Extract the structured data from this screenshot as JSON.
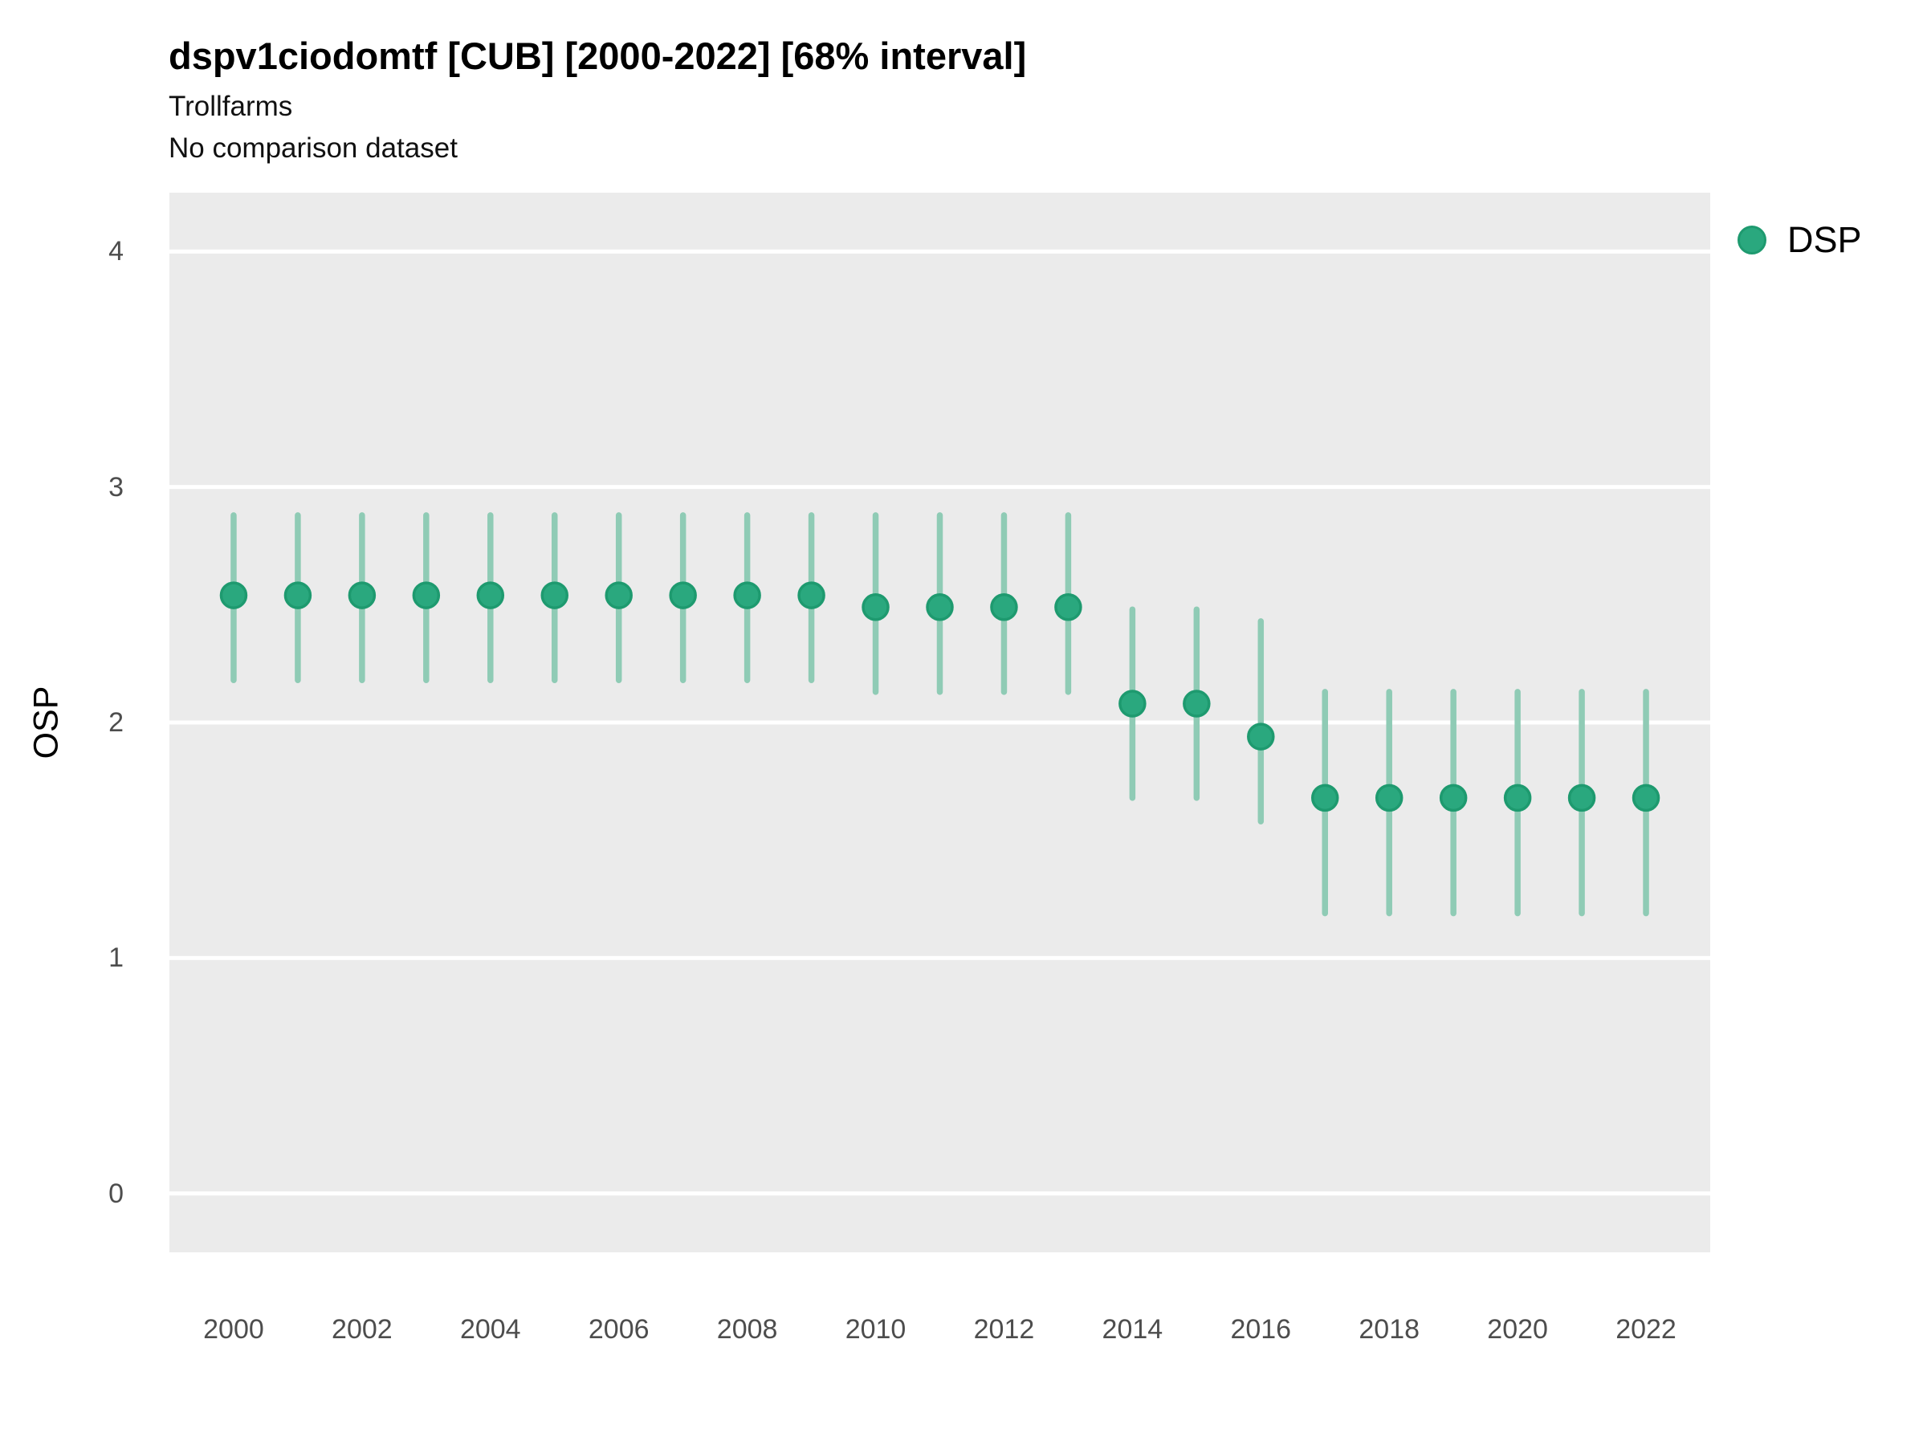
{
  "figure": {
    "title": "dspv1ciodomtf [CUB] [2000-2022] [68% interval]",
    "subtitle_line1": "Trollfarms",
    "subtitle_line2": "No comparison dataset"
  },
  "legend": {
    "position": "right",
    "items": [
      {
        "label": "DSP",
        "swatch": "circle",
        "color": "#2AA87E",
        "ring_color": "#1E9A6F"
      }
    ]
  },
  "chart_data": {
    "type": "scatter",
    "title": "dspv1ciodomtf [CUB] [2000-2022] [68% interval]",
    "subtitle": [
      "Trollfarms",
      "No comparison dataset"
    ],
    "xlabel": "",
    "ylabel": "OSP",
    "interval_label": "68% interval",
    "xlim": [
      1999,
      2023
    ],
    "ylim": [
      -0.25,
      4.25
    ],
    "xticks": [
      2000,
      2002,
      2004,
      2006,
      2008,
      2010,
      2012,
      2014,
      2016,
      2018,
      2020,
      2022
    ],
    "yticks": [
      0,
      1,
      2,
      3,
      4
    ],
    "grid": {
      "horizontal": true,
      "vertical": false,
      "color": "#FFFFFF",
      "panel_background": "#EBEBEB"
    },
    "legend_position": "right",
    "series": [
      {
        "name": "DSP",
        "point_color": "#2AA87E",
        "point_ring_color": "#1E9A6F",
        "interval_color": "#8FCBB5",
        "x": [
          2000,
          2001,
          2002,
          2003,
          2004,
          2005,
          2006,
          2007,
          2008,
          2009,
          2010,
          2011,
          2012,
          2013,
          2014,
          2015,
          2016,
          2017,
          2018,
          2019,
          2020,
          2021,
          2022
        ],
        "y": [
          2.54,
          2.54,
          2.54,
          2.54,
          2.54,
          2.54,
          2.54,
          2.54,
          2.54,
          2.54,
          2.49,
          2.49,
          2.49,
          2.49,
          2.08,
          2.08,
          1.94,
          1.68,
          1.68,
          1.68,
          1.68,
          1.68,
          1.68
        ],
        "y_lo": [
          2.18,
          2.18,
          2.18,
          2.18,
          2.18,
          2.18,
          2.18,
          2.18,
          2.18,
          2.18,
          2.13,
          2.13,
          2.13,
          2.13,
          1.68,
          1.68,
          1.58,
          1.19,
          1.19,
          1.19,
          1.19,
          1.19,
          1.19
        ],
        "y_hi": [
          2.88,
          2.88,
          2.88,
          2.88,
          2.88,
          2.88,
          2.88,
          2.88,
          2.88,
          2.88,
          2.88,
          2.88,
          2.88,
          2.88,
          2.48,
          2.48,
          2.43,
          2.13,
          2.13,
          2.13,
          2.13,
          2.13,
          2.13
        ]
      }
    ]
  }
}
